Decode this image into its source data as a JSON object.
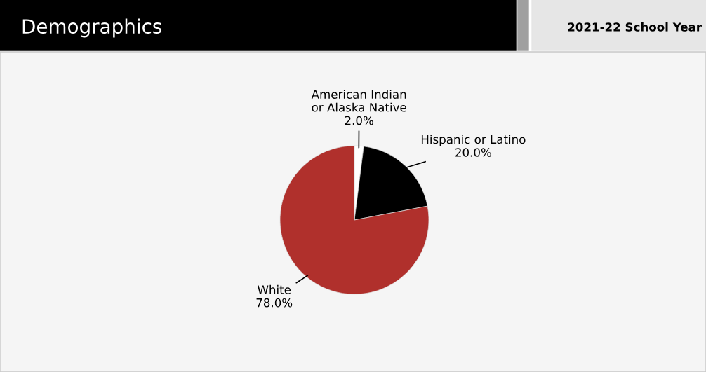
{
  "chart_data": {
    "type": "pie",
    "title": "Demographics",
    "subtitle": "2021-22 School Year",
    "categories": [
      "American Indian\nor Alaska Native",
      "Hispanic or Latino",
      "White"
    ],
    "values": [
      2.0,
      20.0,
      78.0
    ],
    "colors": [
      "#ffffff",
      "#000000",
      "#b0302c"
    ],
    "value_labels": [
      "2.0%",
      "20.0%",
      "78.0%"
    ]
  }
}
